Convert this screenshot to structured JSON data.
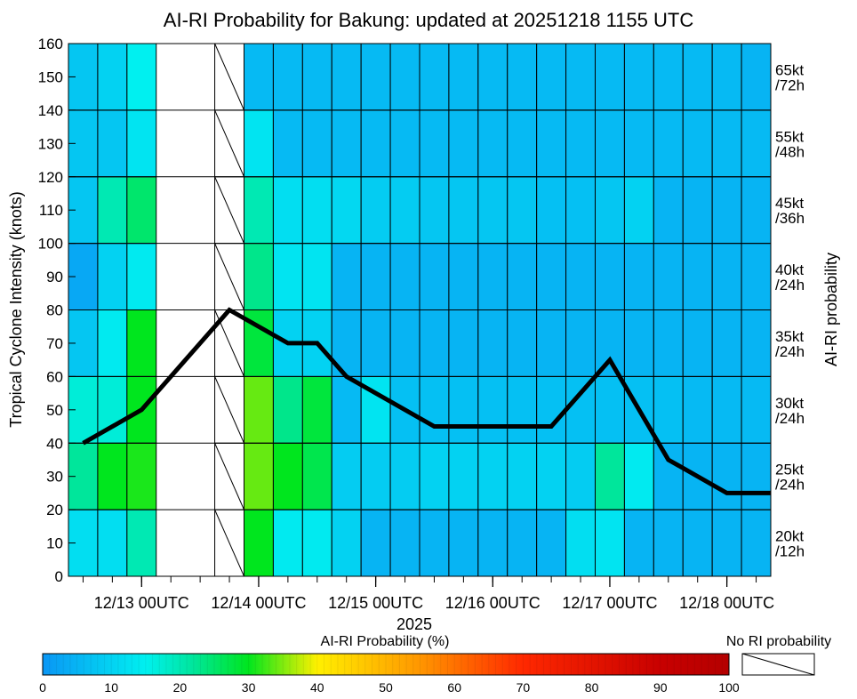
{
  "chart_data": {
    "type": "heatmap",
    "title": "AI-RI Probability for Bakung: updated at 20251218 1155 UTC",
    "ylabel": "Tropical Cyclone Intensity (knots)",
    "right_label": "AI-RI probability",
    "xlabel_year": "2025",
    "ylim": [
      0,
      160
    ],
    "yticks": [
      0,
      10,
      20,
      30,
      40,
      50,
      60,
      70,
      80,
      90,
      100,
      110,
      120,
      130,
      140,
      150,
      160
    ],
    "xticks": [
      "12/13 00UTC",
      "12/14 00UTC",
      "12/15 00UTC",
      "12/16 00UTC",
      "12/17 00UTC",
      "12/18 00UTC"
    ],
    "xtick_columns": [
      2.5,
      6.5,
      10.5,
      14.5,
      18.5,
      22.5
    ],
    "num_columns": 24,
    "x_axis_note": "columns are 6-hourly analysis times from 12/12 12UTC to 12/18 06UTC",
    "rows": [
      {
        "label_line1": "20kt",
        "label_line2": "/12h",
        "y_from": 0,
        "y_to": 20
      },
      {
        "label_line1": "25kt",
        "label_line2": "/24h",
        "y_from": 20,
        "y_to": 40
      },
      {
        "label_line1": "30kt",
        "label_line2": "/24h",
        "y_from": 40,
        "y_to": 60
      },
      {
        "label_line1": "35kt",
        "label_line2": "/24h",
        "y_from": 60,
        "y_to": 80
      },
      {
        "label_line1": "40kt",
        "label_line2": "/24h",
        "y_from": 80,
        "y_to": 100
      },
      {
        "label_line1": "45kt",
        "label_line2": "/36h",
        "y_from": 100,
        "y_to": 120
      },
      {
        "label_line1": "55kt",
        "label_line2": "/48h",
        "y_from": 120,
        "y_to": 140
      },
      {
        "label_line1": "65kt",
        "label_line2": "/72h",
        "y_from": 140,
        "y_to": 160
      }
    ],
    "probability_grid_note": "rows listed bottom(20kt/12h) to top(65kt/72h); null = missing, 'X' = no RI probability",
    "probability_grid": [
      [
        12,
        12,
        20,
        null,
        null,
        "X",
        30,
        14,
        14,
        10,
        5,
        5,
        5,
        5,
        5,
        5,
        5,
        12,
        13,
        5,
        5,
        5,
        5,
        5
      ],
      [
        22,
        30,
        31,
        null,
        null,
        "X",
        34,
        30,
        27,
        9,
        9,
        9,
        10,
        10,
        10,
        10,
        10,
        9,
        22,
        14,
        5,
        5,
        5,
        5
      ],
      [
        17,
        17,
        30,
        null,
        null,
        "X",
        34,
        23,
        28,
        6,
        13,
        7,
        7,
        7,
        7,
        7,
        7,
        7,
        7,
        7,
        7,
        6,
        6,
        6
      ],
      [
        8,
        14,
        30,
        null,
        null,
        "X",
        28,
        10,
        10,
        5,
        5,
        5,
        5,
        5,
        5,
        5,
        5,
        5,
        5,
        5,
        5,
        5,
        5,
        5
      ],
      [
        3,
        10,
        14,
        null,
        null,
        "X",
        23,
        13,
        13,
        5,
        5,
        5,
        5,
        5,
        5,
        5,
        5,
        5,
        5,
        5,
        5,
        5,
        5,
        5
      ],
      [
        8,
        20,
        25,
        null,
        null,
        "X",
        20,
        12,
        12,
        11,
        9,
        9,
        8,
        8,
        8,
        8,
        7,
        7,
        8,
        10,
        5,
        5,
        5,
        5
      ],
      [
        8,
        8,
        13,
        null,
        null,
        "X",
        13,
        6,
        6,
        6,
        6,
        6,
        6,
        6,
        6,
        6,
        6,
        6,
        6,
        6,
        6,
        6,
        6,
        6
      ],
      [
        8,
        10,
        15,
        null,
        null,
        "X",
        6,
        6,
        6,
        6,
        6,
        6,
        6,
        6,
        6,
        6,
        6,
        6,
        6,
        6,
        6,
        6,
        6,
        5
      ]
    ],
    "series": [
      {
        "name": "Intensity (knots)",
        "column_positions": [
          0.5,
          2.5,
          5.5,
          7.5,
          8.5,
          9.5,
          12.5,
          16.5,
          18.5,
          20.5,
          22.5,
          24
        ],
        "values": [
          40,
          50,
          80,
          70,
          70,
          60,
          45,
          45,
          65,
          35,
          25,
          25
        ]
      }
    ],
    "colorbar": {
      "label": "AI-RI Probability (%)",
      "ticks": [
        0,
        10,
        20,
        30,
        40,
        50,
        60,
        70,
        80,
        90,
        100
      ],
      "range": [
        0,
        100
      ],
      "stops": [
        {
          "v": 0,
          "color": "#0a96f5"
        },
        {
          "v": 15,
          "color": "#00f0f0"
        },
        {
          "v": 22,
          "color": "#00e69b"
        },
        {
          "v": 30,
          "color": "#00e61e"
        },
        {
          "v": 40,
          "color": "#fff000"
        },
        {
          "v": 55,
          "color": "#ff9600"
        },
        {
          "v": 70,
          "color": "#ff2800"
        },
        {
          "v": 90,
          "color": "#c80000"
        },
        {
          "v": 100,
          "color": "#b40000"
        }
      ],
      "no_ri_label": "No RI probability"
    }
  }
}
